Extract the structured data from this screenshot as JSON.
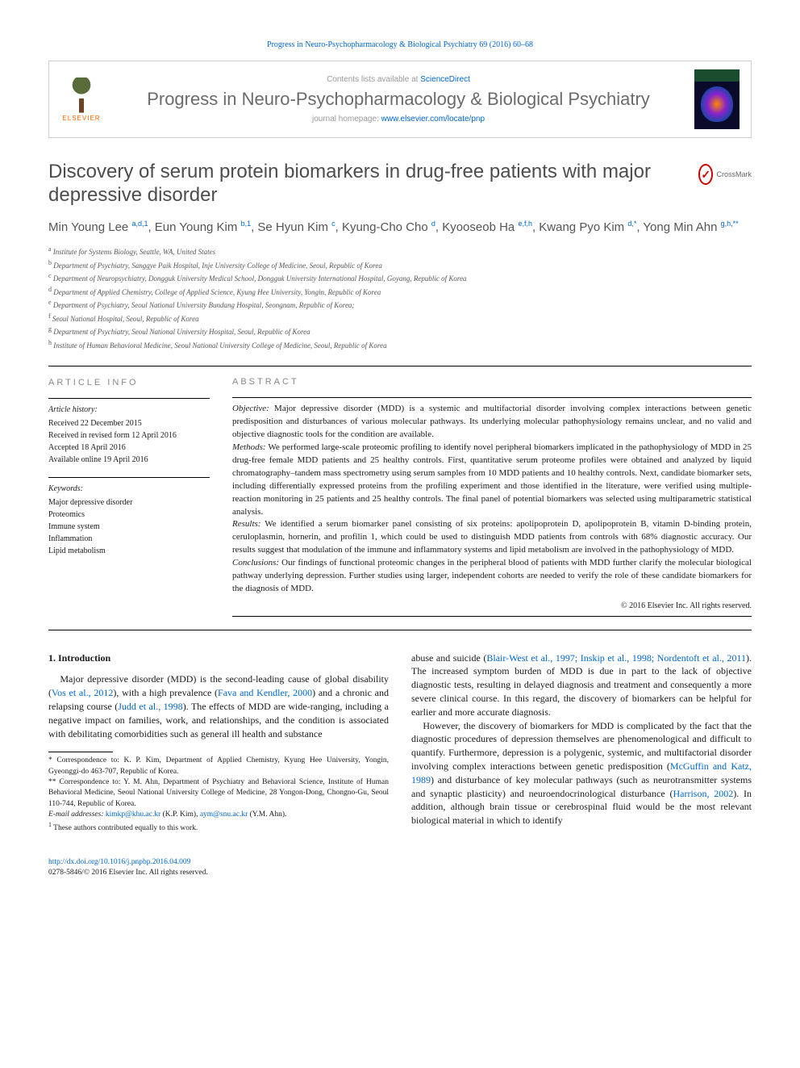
{
  "topLink": {
    "text": "Progress in Neuro-Psychopharmacology & Biological Psychiatry 69 (2016) 60–68"
  },
  "header": {
    "contentsAt": "Contents lists available at ",
    "contentsLink": "ScienceDirect",
    "journalTitle": "Progress in Neuro-Psychopharmacology & Biological Psychiatry",
    "homepagePrefix": "journal homepage: ",
    "homepageUrl": "www.elsevier.com/locate/pnp",
    "elsevierLabel": "ELSEVIER"
  },
  "crossmark": "CrossMark",
  "title": "Discovery of serum protein biomarkers in drug-free patients with major depressive disorder",
  "authors": [
    {
      "name": "Min Young Lee ",
      "sup": "a,d,1"
    },
    {
      "name": ", Eun Young Kim ",
      "sup": "b,1"
    },
    {
      "name": ", Se Hyun Kim ",
      "sup": "c"
    },
    {
      "name": ", Kyung-Cho Cho ",
      "sup": "d"
    },
    {
      "name": ", Kyooseob Ha ",
      "sup": "e,f,h"
    },
    {
      "name": ", Kwang Pyo Kim ",
      "sup": "d,*"
    },
    {
      "name": ", Yong Min Ahn ",
      "sup": "g,h,**"
    }
  ],
  "affiliations": [
    {
      "sup": "a",
      "text": " Institute for Systems Biology, Seattle, WA, United States"
    },
    {
      "sup": "b",
      "text": " Department of Psychiatry, Sanggye Paik Hospital, Inje University College of Medicine, Seoul, Republic of Korea"
    },
    {
      "sup": "c",
      "text": " Department of Neuropsychiatry, Dongguk University Medical School, Dongguk University International Hospital, Goyang, Republic of Korea"
    },
    {
      "sup": "d",
      "text": " Department of Applied Chemistry, College of Applied Science, Kyung Hee University, Yongin, Republic of Korea"
    },
    {
      "sup": "e",
      "text": " Department of Psychiatry, Seoul National University Bundang Hospital, Seongnam, Republic of Korea;"
    },
    {
      "sup": "f",
      "text": " Seoul National Hospital, Seoul, Republic of Korea"
    },
    {
      "sup": "g",
      "text": " Department of Psychiatry, Seoul National University Hospital, Seoul, Republic of Korea"
    },
    {
      "sup": "h",
      "text": " Institute of Human Behavioral Medicine, Seoul National University College of Medicine, Seoul, Republic of Korea"
    }
  ],
  "articleInfo": {
    "label": "ARTICLE INFO",
    "historyTitle": "Article history:",
    "history": [
      "Received 22 December 2015",
      "Received in revised form 12 April 2016",
      "Accepted 18 April 2016",
      "Available online 19 April 2016"
    ],
    "keywordsTitle": "Keywords:",
    "keywords": [
      "Major depressive disorder",
      "Proteomics",
      "Immune system",
      "Inflammation",
      "Lipid metabolism"
    ]
  },
  "abstract": {
    "label": "ABSTRACT",
    "objectiveLabel": "Objective:",
    "objective": " Major depressive disorder (MDD) is a systemic and multifactorial disorder involving complex interactions between genetic predisposition and disturbances of various molecular pathways. Its underlying molecular pathophysiology remains unclear, and no valid and objective diagnostic tools for the condition are available.",
    "methodsLabel": "Methods:",
    "methods": " We performed large-scale proteomic profiling to identify novel peripheral biomarkers implicated in the pathophysiology of MDD in 25 drug-free female MDD patients and 25 healthy controls. First, quantitative serum proteome profiles were obtained and analyzed by liquid chromatography–tandem mass spectrometry using serum samples from 10 MDD patients and 10 healthy controls. Next, candidate biomarker sets, including differentially expressed proteins from the profiling experiment and those identified in the literature, were verified using multiple-reaction monitoring in 25 patients and 25 healthy controls. The final panel of potential biomarkers was selected using multiparametric statistical analysis.",
    "resultsLabel": "Results:",
    "results": " We identified a serum biomarker panel consisting of six proteins: apolipoprotein D, apolipoprotein B, vitamin D-binding protein, ceruloplasmin, hornerin, and profilin 1, which could be used to distinguish MDD patients from controls with 68% diagnostic accuracy. Our results suggest that modulation of the immune and inflammatory systems and lipid metabolism are involved in the pathophysiology of MDD.",
    "conclusionsLabel": "Conclusions:",
    "conclusions": " Our findings of functional proteomic changes in the peripheral blood of patients with MDD further clarify the molecular biological pathway underlying depression. Further studies using larger, independent cohorts are needed to verify the role of these candidate biomarkers for the diagnosis of MDD.",
    "copyright": "© 2016 Elsevier Inc. All rights reserved."
  },
  "intro": {
    "heading": "1. Introduction",
    "p1a": "Major depressive disorder (MDD) is the second-leading cause of global disability (",
    "l1": "Vos et al., 2012",
    "p1b": "), with a high prevalence (",
    "l2": "Fava and Kendler, 2000",
    "p1c": ") and a chronic and relapsing course (",
    "l3": "Judd et al., 1998",
    "p1d": "). The effects of MDD are wide-ranging, including a negative impact on families, work, and relationships, and the condition is associated with debilitating comorbidities such as general ill health and substance",
    "p2a": "abuse and suicide (",
    "l4": "Blair-West et al., 1997; Inskip et al., 1998; Nordentoft et al., 2011",
    "p2b": "). The increased symptom burden of MDD is due in part to the lack of objective diagnostic tests, resulting in delayed diagnosis and treatment and consequently a more severe clinical course. In this regard, the discovery of biomarkers can be helpful for earlier and more accurate diagnosis.",
    "p3a": "However, the discovery of biomarkers for MDD is complicated by the fact that the diagnostic procedures of depression themselves are phenomenological and difficult to quantify. Furthermore, depression is a polygenic, systemic, and multifactorial disorder involving complex interactions between genetic predisposition (",
    "l5": "McGuffin and Katz, 1989",
    "p3b": ") and disturbance of key molecular pathways (such as neurotransmitter systems and synaptic plasticity) and neuroendocrinological disturbance (",
    "l6": "Harrison, 2002",
    "p3c": "). In addition, although brain tissue or cerebrospinal fluid would be the most relevant biological material in which to identify"
  },
  "footnotes": {
    "c1Label": "*",
    "c1": " Correspondence to: K. P. Kim, Department of Applied Chemistry, Kyung Hee University, Yongin, Gyeonggi-do 463-707, Republic of Korea.",
    "c2Label": "**",
    "c2": " Correspondence to: Y. M. Ahn, Department of Psychiatry and Behavioral Science, Institute of Human Behavioral Medicine, Seoul National University College of Medicine, 28 Yongon-Dong, Chongno-Gu, Seoul 110-744, Republic of Korea.",
    "emailLabel": "E-mail addresses: ",
    "email1": "kimkp@khu.ac.kr",
    "email1Name": " (K.P. Kim), ",
    "email2": "aym@snu.ac.kr",
    "email2Name": " (Y.M. Ahn).",
    "note1Label": "1",
    "note1": " These authors contributed equally to this work."
  },
  "footer": {
    "doi": "http://dx.doi.org/10.1016/j.pnpbp.2016.04.009",
    "issn": "0278-5846/© 2016 Elsevier Inc. All rights reserved."
  }
}
